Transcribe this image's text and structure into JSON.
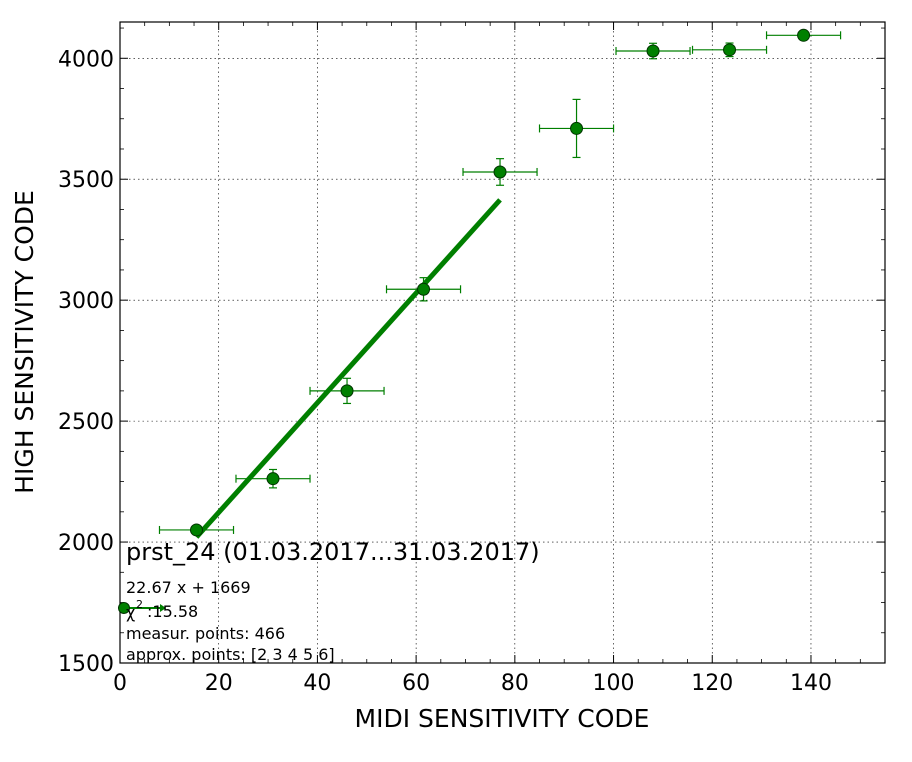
{
  "chart_data": {
    "type": "scatter",
    "xlabel": "MIDI SENSITIVITY CODE",
    "ylabel": "HIGH SENSITIVITY CODE",
    "xlim": [
      0,
      155
    ],
    "ylim": [
      1500,
      4150
    ],
    "xticks": [
      0,
      20,
      40,
      60,
      80,
      100,
      120,
      140
    ],
    "yticks": [
      1500,
      2000,
      2500,
      3000,
      3500,
      4000
    ],
    "grid": true,
    "colors": {
      "series": "#007f00",
      "marker_fill": "#008000",
      "marker_edge": "#003300"
    },
    "series": [
      {
        "x": [
          15.5,
          31,
          46,
          61.5,
          77,
          92.5,
          108,
          123.5,
          138.5
        ],
        "y": [
          2050,
          2262,
          2625,
          3045,
          3530,
          3710,
          4030,
          4035,
          4095
        ],
        "xerr": [
          7.5,
          7.5,
          7.5,
          7.5,
          7.5,
          7.5,
          7.5,
          7.5,
          7.5
        ],
        "yerr": [
          18,
          38,
          52,
          48,
          55,
          120,
          32,
          28,
          12
        ]
      }
    ],
    "fit": {
      "slope": 22.67,
      "intercept": 1669,
      "x_range": [
        15.5,
        77
      ]
    },
    "annotations": {
      "title": "prst_24 (01.03.2017...31.03.2017)",
      "equation": "22.67 x + 1669",
      "chi2_label": "χ",
      "chi2_sup": "2",
      "chi2_value": ":15.58",
      "measur": "measur. points: 466",
      "approx": "approx. points: [2 3 4 5 6]"
    }
  }
}
